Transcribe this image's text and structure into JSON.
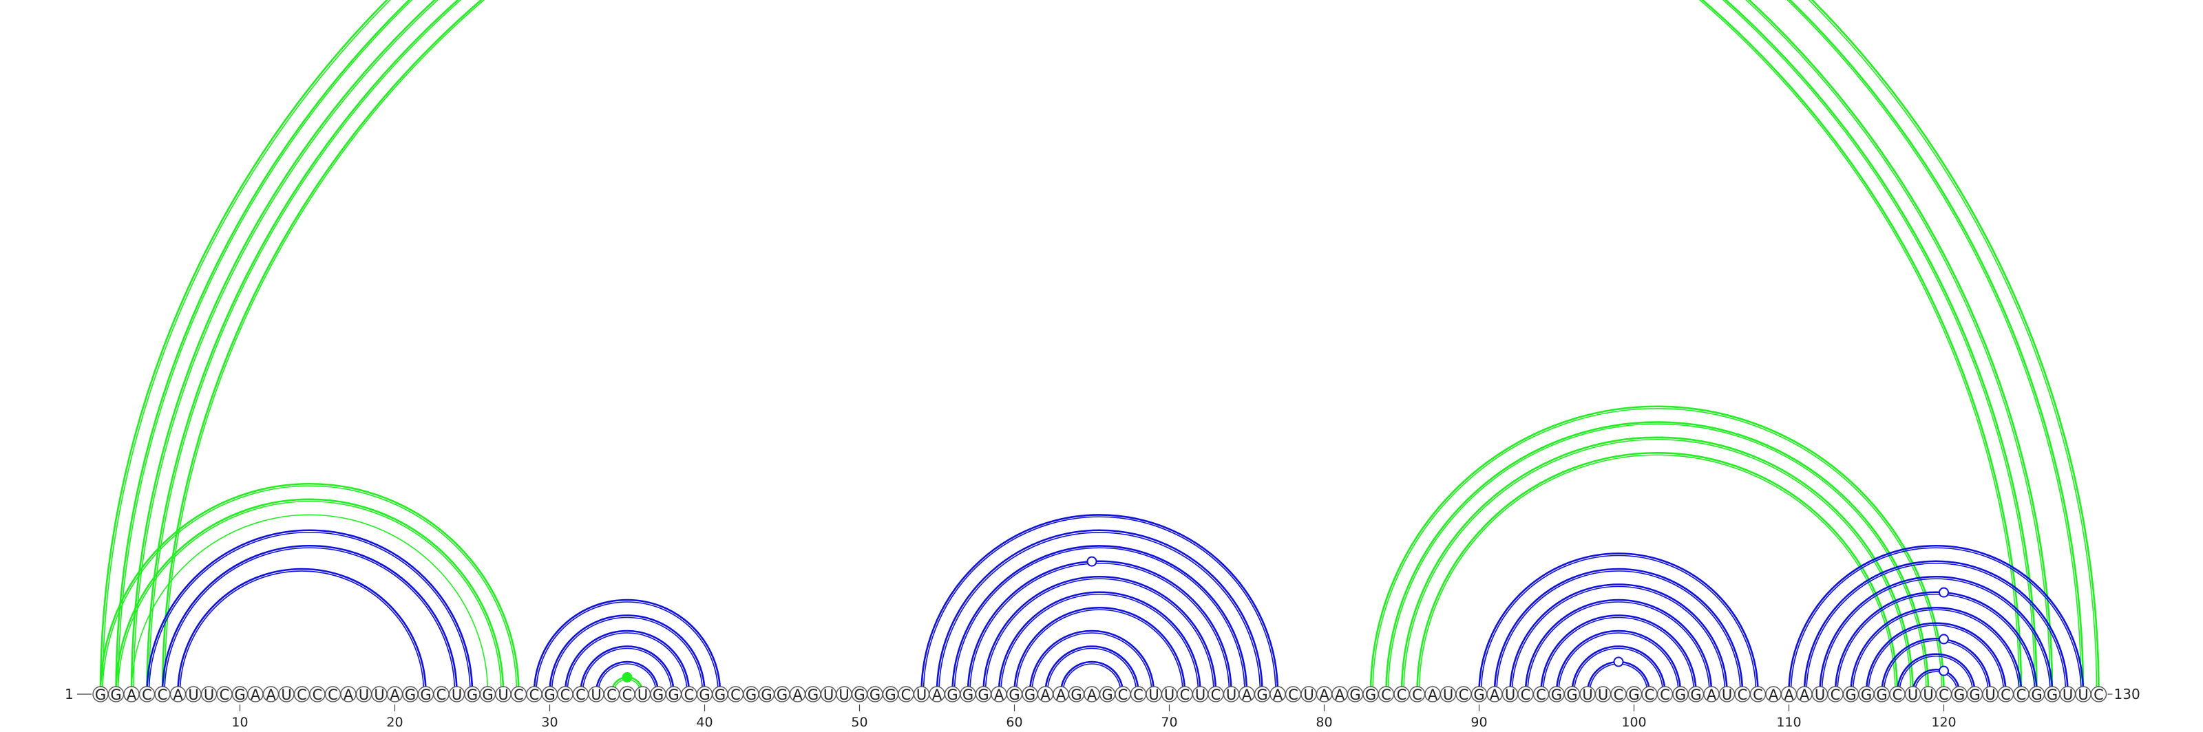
{
  "diagram": {
    "sequence": "GGACCAUUCGAAUCCCAUUAGGCUGGUCCGCCUCCUGGCGGCGGGAGUUGGGCUAGGGAGGAAGAGCCUUCUCUAGACUAAGGCCCAUCGAUCCGGUUCGCCGGAUCCAAAUCGGGCUUCGGUCCGGUUC",
    "start_label": "1",
    "end_label": "130",
    "ticks": [
      {
        "pos": 10,
        "label": "10"
      },
      {
        "pos": 20,
        "label": "20"
      },
      {
        "pos": 30,
        "label": "30"
      },
      {
        "pos": 40,
        "label": "40"
      },
      {
        "pos": 50,
        "label": "50"
      },
      {
        "pos": 60,
        "label": "60"
      },
      {
        "pos": 70,
        "label": "70"
      },
      {
        "pos": 80,
        "label": "80"
      },
      {
        "pos": 90,
        "label": "90"
      },
      {
        "pos": 100,
        "label": "100"
      },
      {
        "pos": 110,
        "label": "110"
      },
      {
        "pos": 120,
        "label": "120"
      }
    ],
    "colors": {
      "green": "#22ee22",
      "blue": "#1111dd"
    },
    "arcs": [
      {
        "i": 1,
        "j": 130,
        "color": "green"
      },
      {
        "i": 2,
        "j": 129,
        "color": "green"
      },
      {
        "i": 3,
        "j": 127,
        "color": "green"
      },
      {
        "i": 4,
        "j": 126,
        "color": "green"
      },
      {
        "i": 5,
        "j": 125,
        "color": "green"
      },
      {
        "i": 1,
        "j": 28,
        "color": "green"
      },
      {
        "i": 2,
        "j": 27,
        "color": "green"
      },
      {
        "i": 3,
        "j": 26,
        "color": "green",
        "thin": true
      },
      {
        "i": 4,
        "j": 25,
        "color": "blue"
      },
      {
        "i": 5,
        "j": 24,
        "color": "blue"
      },
      {
        "i": 6,
        "j": 22,
        "color": "blue"
      },
      {
        "i": 29,
        "j": 41,
        "color": "blue"
      },
      {
        "i": 30,
        "j": 40,
        "color": "blue"
      },
      {
        "i": 31,
        "j": 39,
        "color": "blue"
      },
      {
        "i": 32,
        "j": 38,
        "color": "blue"
      },
      {
        "i": 33,
        "j": 37,
        "color": "blue"
      },
      {
        "i": 34,
        "j": 36,
        "color": "green"
      },
      {
        "i": 54,
        "j": 77,
        "color": "blue"
      },
      {
        "i": 55,
        "j": 76,
        "color": "blue"
      },
      {
        "i": 56,
        "j": 75,
        "color": "blue"
      },
      {
        "i": 57,
        "j": 74,
        "color": "blue"
      },
      {
        "i": 58,
        "j": 73,
        "color": "blue"
      },
      {
        "i": 59,
        "j": 72,
        "color": "blue"
      },
      {
        "i": 60,
        "j": 71,
        "color": "blue"
      },
      {
        "i": 61,
        "j": 69,
        "color": "blue"
      },
      {
        "i": 62,
        "j": 68,
        "color": "blue"
      },
      {
        "i": 63,
        "j": 67,
        "color": "blue"
      },
      {
        "i": 83,
        "j": 120,
        "color": "green"
      },
      {
        "i": 84,
        "j": 119,
        "color": "green"
      },
      {
        "i": 85,
        "j": 118,
        "color": "green"
      },
      {
        "i": 86,
        "j": 117,
        "color": "green"
      },
      {
        "i": 90,
        "j": 108,
        "color": "blue"
      },
      {
        "i": 91,
        "j": 107,
        "color": "blue"
      },
      {
        "i": 92,
        "j": 106,
        "color": "blue"
      },
      {
        "i": 93,
        "j": 105,
        "color": "blue"
      },
      {
        "i": 94,
        "j": 104,
        "color": "blue"
      },
      {
        "i": 95,
        "j": 103,
        "color": "blue"
      },
      {
        "i": 96,
        "j": 102,
        "color": "blue"
      },
      {
        "i": 97,
        "j": 101,
        "color": "blue"
      },
      {
        "i": 110,
        "j": 129,
        "color": "blue"
      },
      {
        "i": 111,
        "j": 128,
        "color": "blue"
      },
      {
        "i": 112,
        "j": 127,
        "color": "blue"
      },
      {
        "i": 113,
        "j": 126,
        "color": "blue"
      },
      {
        "i": 114,
        "j": 125,
        "color": "blue"
      },
      {
        "i": 115,
        "j": 124,
        "color": "blue"
      },
      {
        "i": 116,
        "j": 123,
        "color": "blue"
      },
      {
        "i": 117,
        "j": 122,
        "color": "blue"
      },
      {
        "i": 118,
        "j": 121,
        "color": "blue"
      }
    ],
    "markers": [
      {
        "pos": 65.5,
        "on_arc": [
          1,
          130
        ],
        "color": "green",
        "filled": false
      },
      {
        "pos": 35,
        "on_arc": [
          34,
          36
        ],
        "color": "green",
        "filled": true
      },
      {
        "pos": 65,
        "on_arc": [
          57,
          74
        ],
        "color": "blue",
        "filled": false
      },
      {
        "pos": 99,
        "on_arc": [
          97,
          101
        ],
        "color": "blue",
        "filled": false
      },
      {
        "pos": 120,
        "on_arc": [
          113,
          126
        ],
        "color": "blue",
        "filled": false
      },
      {
        "pos": 120,
        "on_arc": [
          116,
          123
        ],
        "color": "blue",
        "filled": false
      },
      {
        "pos": 120,
        "on_arc": [
          118,
          121
        ],
        "color": "blue",
        "filled": false
      }
    ]
  }
}
